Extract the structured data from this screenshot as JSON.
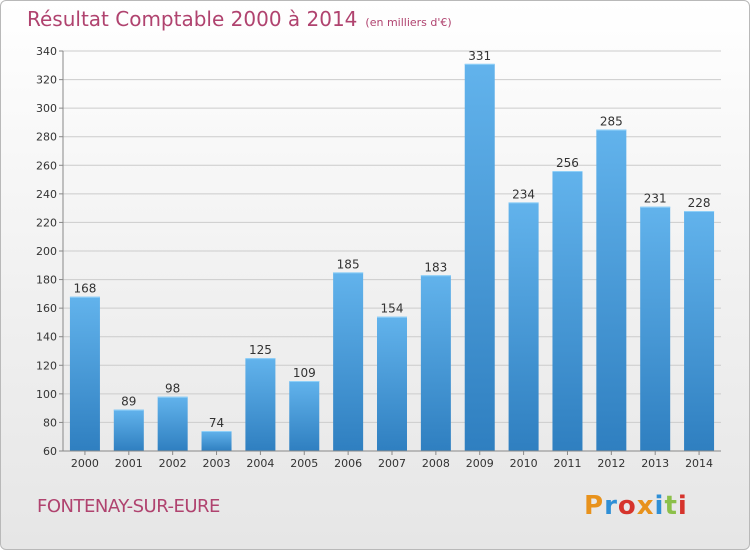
{
  "header": {
    "title": "Résultat Comptable 2000 à 2014",
    "unit": "(en milliers d'€)"
  },
  "footer": {
    "commune": "FONTENAY-SUR-EURE",
    "logo_letters": [
      "P",
      "r",
      "o",
      "x",
      "i",
      "t",
      "i"
    ],
    "logo_colors": [
      "#e8921c",
      "#2f8fd6",
      "#d6342c",
      "#e8921c",
      "#2f8fd6",
      "#8cc04a",
      "#d6342c"
    ]
  },
  "colors": {
    "title": "#b0436f",
    "bar_light": "#62b3ec",
    "bar_dark": "#2f7fc0",
    "grid": "#cccccc",
    "axis_text": "#333333"
  },
  "chart_data": {
    "type": "bar",
    "categories": [
      "2000",
      "2001",
      "2002",
      "2003",
      "2004",
      "2005",
      "2006",
      "2007",
      "2008",
      "2009",
      "2010",
      "2011",
      "2012",
      "2013",
      "2014"
    ],
    "values": [
      168,
      89,
      98,
      74,
      125,
      109,
      185,
      154,
      183,
      331,
      234,
      256,
      285,
      231,
      228
    ],
    "ylim": [
      60,
      340
    ],
    "yticks": [
      60,
      80,
      100,
      120,
      140,
      160,
      180,
      200,
      220,
      240,
      260,
      280,
      300,
      320,
      340
    ],
    "grid": true,
    "data_labels": true
  }
}
